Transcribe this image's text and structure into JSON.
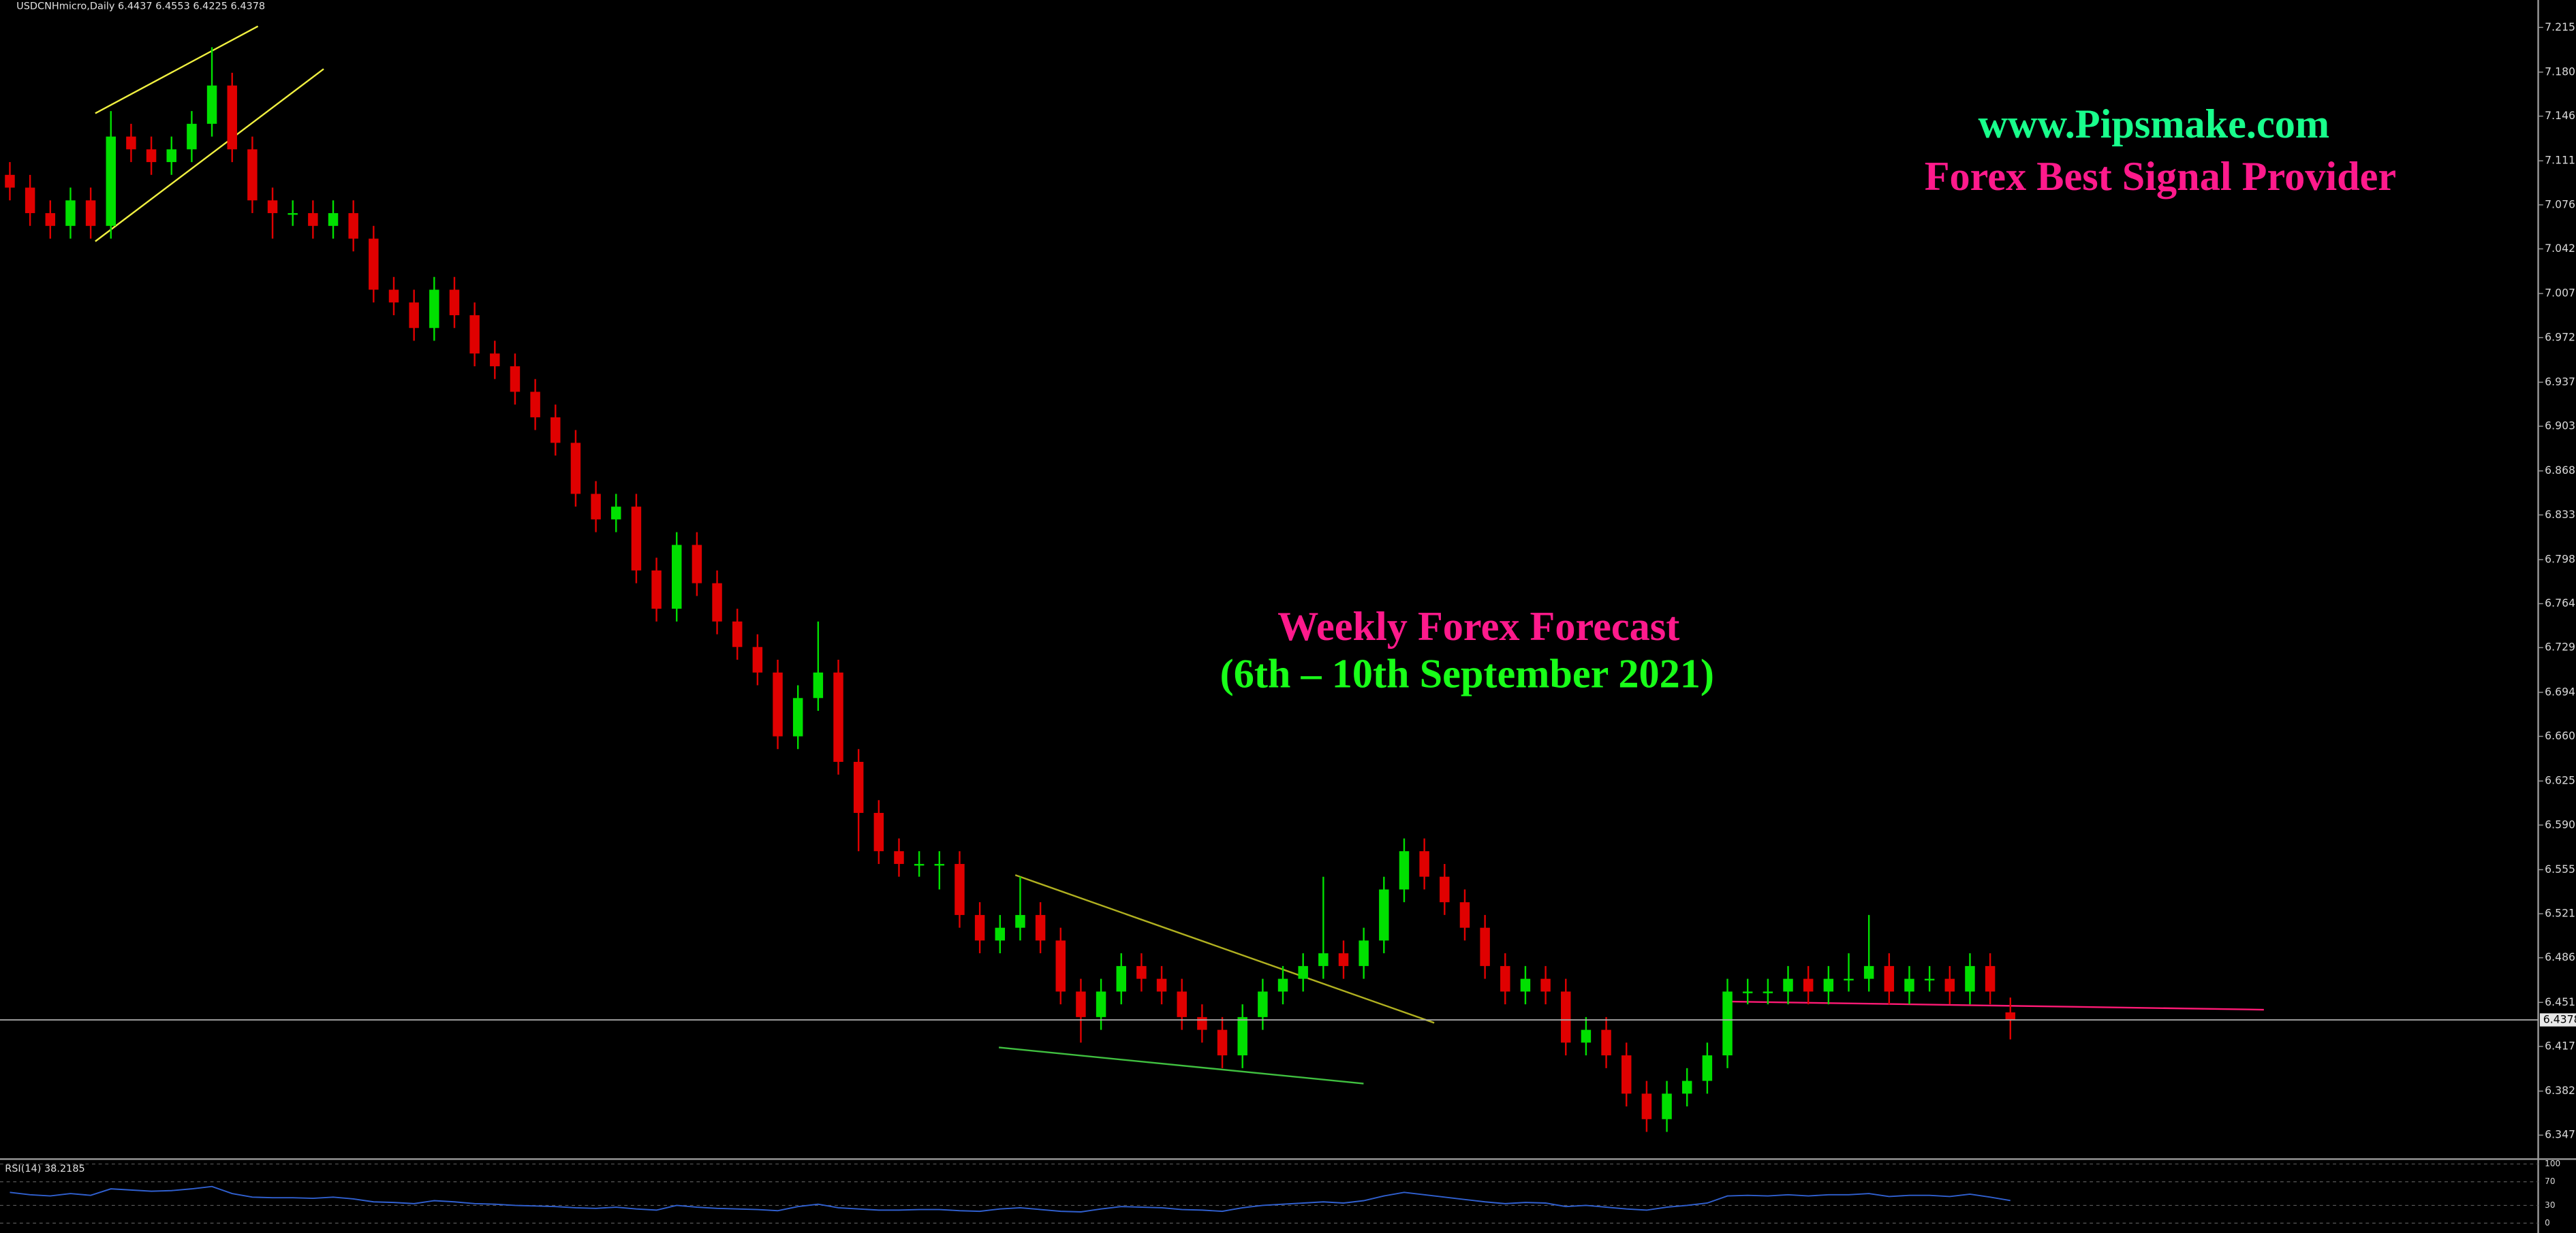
{
  "header": {
    "symbol_info": "USDCNHmicro,Daily 6.4437 6.4553 6.4225 6.4378"
  },
  "overlay": {
    "site": "www.Pipsmake.com",
    "tagline": "Forex Best Signal Provider",
    "forecast_title": "Weekly Forex Forecast",
    "forecast_dates": "(6th – 10th September 2021)"
  },
  "chart_data": {
    "type": "candlestick",
    "ylim": [
      6.33,
      7.237
    ],
    "yticks": [
      7.2155,
      7.1805,
      {
        "value": 7.146,
        "label": "7.1460"
      },
      {
        "value": 7.111,
        "label": "7.1110"
      },
      7.0765,
      {
        "value": 7.042,
        "label": "7.0420"
      },
      {
        "value": 7.007,
        "label": "7.0070"
      },
      6.9725,
      6.9375,
      {
        "value": 6.903,
        "label": "6.9030"
      },
      {
        "value": 6.868,
        "label": "6.8680"
      },
      6.8335,
      6.7985,
      {
        "value": 6.764,
        "label": "6.7640"
      },
      6.7295,
      6.6945,
      {
        "value": 6.66,
        "label": "6.6600"
      },
      {
        "value": 6.625,
        "label": "6.6250"
      },
      6.5905,
      6.5555,
      {
        "value": 6.521,
        "label": "6.5210"
      },
      6.4865,
      6.4515,
      {
        "value": 6.417,
        "label": "6.4170"
      },
      {
        "value": 6.382,
        "label": "6.3820"
      },
      6.3475
    ],
    "current_price": 6.4378,
    "up_color": "#00e000",
    "down_color": "#e00000",
    "open": [
      7.1,
      7.09,
      7.07,
      7.06,
      7.08,
      7.06,
      7.13,
      7.12,
      7.11,
      7.12,
      7.14,
      7.17,
      7.12,
      7.08,
      7.07,
      7.07,
      7.06,
      7.07,
      7.05,
      7.01,
      7.0,
      6.98,
      7.01,
      6.99,
      6.96,
      6.95,
      6.93,
      6.91,
      6.89,
      6.85,
      6.83,
      6.84,
      6.79,
      6.76,
      6.81,
      6.78,
      6.75,
      6.73,
      6.71,
      6.66,
      6.69,
      6.71,
      6.64,
      6.6,
      6.57,
      6.56,
      6.56,
      6.56,
      6.52,
      6.5,
      6.51,
      6.52,
      6.5,
      6.46,
      6.44,
      6.46,
      6.48,
      6.47,
      6.46,
      6.44,
      6.43,
      6.41,
      6.44,
      6.46,
      6.47,
      6.48,
      6.49,
      6.48,
      6.5,
      6.54,
      6.57,
      6.55,
      6.53,
      6.51,
      6.48,
      6.46,
      6.47,
      6.46,
      6.42,
      6.43,
      6.41,
      6.38,
      6.36,
      6.38,
      6.39,
      6.41,
      6.46,
      6.46,
      6.46,
      6.47,
      6.46,
      6.47,
      6.47,
      6.48,
      6.46,
      6.47,
      6.47,
      6.46,
      6.48,
      6.4437
    ],
    "high": [
      7.11,
      7.1,
      7.08,
      7.09,
      7.09,
      7.15,
      7.14,
      7.13,
      7.13,
      7.15,
      7.2,
      7.18,
      7.13,
      7.09,
      7.08,
      7.08,
      7.08,
      7.08,
      7.06,
      7.02,
      7.01,
      7.02,
      7.02,
      7.0,
      6.97,
      6.96,
      6.94,
      6.92,
      6.9,
      6.86,
      6.85,
      6.85,
      6.8,
      6.82,
      6.82,
      6.79,
      6.76,
      6.74,
      6.72,
      6.7,
      6.75,
      6.72,
      6.65,
      6.61,
      6.58,
      6.57,
      6.57,
      6.57,
      6.53,
      6.52,
      6.55,
      6.53,
      6.51,
      6.47,
      6.47,
      6.49,
      6.49,
      6.48,
      6.47,
      6.45,
      6.44,
      6.45,
      6.47,
      6.48,
      6.49,
      6.55,
      6.5,
      6.51,
      6.55,
      6.58,
      6.58,
      6.56,
      6.54,
      6.52,
      6.49,
      6.48,
      6.48,
      6.47,
      6.44,
      6.44,
      6.42,
      6.39,
      6.39,
      6.4,
      6.42,
      6.47,
      6.47,
      6.47,
      6.48,
      6.48,
      6.48,
      6.49,
      6.52,
      6.49,
      6.48,
      6.48,
      6.48,
      6.49,
      6.49,
      6.4553
    ],
    "low": [
      7.08,
      7.06,
      7.05,
      7.05,
      7.05,
      7.05,
      7.11,
      7.1,
      7.1,
      7.11,
      7.13,
      7.11,
      7.07,
      7.05,
      7.06,
      7.05,
      7.05,
      7.04,
      7.0,
      6.99,
      6.97,
      6.97,
      6.98,
      6.95,
      6.94,
      6.92,
      6.9,
      6.88,
      6.84,
      6.82,
      6.82,
      6.78,
      6.75,
      6.75,
      6.77,
      6.74,
      6.72,
      6.7,
      6.65,
      6.65,
      6.68,
      6.63,
      6.57,
      6.56,
      6.55,
      6.55,
      6.54,
      6.51,
      6.49,
      6.49,
      6.5,
      6.49,
      6.45,
      6.42,
      6.43,
      6.45,
      6.46,
      6.45,
      6.43,
      6.42,
      6.4,
      6.4,
      6.43,
      6.45,
      6.46,
      6.47,
      6.47,
      6.47,
      6.49,
      6.53,
      6.54,
      6.52,
      6.5,
      6.47,
      6.45,
      6.45,
      6.45,
      6.41,
      6.41,
      6.4,
      6.37,
      6.35,
      6.35,
      6.37,
      6.38,
      6.4,
      6.45,
      6.45,
      6.45,
      6.45,
      6.45,
      6.46,
      6.46,
      6.45,
      6.45,
      6.46,
      6.45,
      6.45,
      6.45,
      6.4225
    ],
    "close": [
      7.09,
      7.07,
      7.06,
      7.08,
      7.06,
      7.13,
      7.12,
      7.11,
      7.12,
      7.14,
      7.17,
      7.12,
      7.08,
      7.07,
      7.07,
      7.06,
      7.07,
      7.05,
      7.01,
      7.0,
      6.98,
      7.01,
      6.99,
      6.96,
      6.95,
      6.93,
      6.91,
      6.89,
      6.85,
      6.83,
      6.84,
      6.79,
      6.76,
      6.81,
      6.78,
      6.75,
      6.73,
      6.71,
      6.66,
      6.69,
      6.71,
      6.64,
      6.6,
      6.57,
      6.56,
      6.56,
      6.56,
      6.52,
      6.5,
      6.51,
      6.52,
      6.5,
      6.46,
      6.44,
      6.46,
      6.48,
      6.47,
      6.46,
      6.44,
      6.43,
      6.41,
      6.44,
      6.46,
      6.47,
      6.48,
      6.49,
      6.48,
      6.5,
      6.54,
      6.57,
      6.55,
      6.53,
      6.51,
      6.48,
      6.46,
      6.47,
      6.46,
      6.42,
      6.43,
      6.41,
      6.38,
      6.36,
      6.38,
      6.39,
      6.41,
      6.46,
      6.46,
      6.46,
      6.47,
      6.46,
      6.47,
      6.47,
      6.48,
      6.46,
      6.47,
      6.47,
      6.46,
      6.48,
      6.46,
      6.4378
    ],
    "rsi": {
      "label": "RSI(14) 38.2185",
      "color": "#3060d0",
      "ylim": [
        0,
        100
      ],
      "yticks": [
        100,
        70,
        30,
        0
      ],
      "values": [
        52,
        48,
        46,
        50,
        47,
        58,
        56,
        54,
        55,
        58,
        62,
        50,
        44,
        43,
        43,
        42,
        44,
        41,
        36,
        35,
        33,
        38,
        36,
        33,
        32,
        30,
        29,
        28,
        26,
        25,
        27,
        24,
        22,
        30,
        27,
        25,
        24,
        23,
        21,
        28,
        32,
        26,
        24,
        22,
        22,
        23,
        23,
        21,
        20,
        24,
        26,
        23,
        20,
        19,
        24,
        28,
        27,
        26,
        23,
        22,
        20,
        26,
        30,
        32,
        34,
        36,
        34,
        38,
        46,
        52,
        48,
        44,
        40,
        36,
        33,
        35,
        34,
        28,
        30,
        27,
        24,
        22,
        27,
        30,
        34,
        46,
        47,
        46,
        48,
        46,
        48,
        48,
        50,
        45,
        47,
        47,
        45,
        49,
        44,
        38.2185
      ]
    }
  }
}
